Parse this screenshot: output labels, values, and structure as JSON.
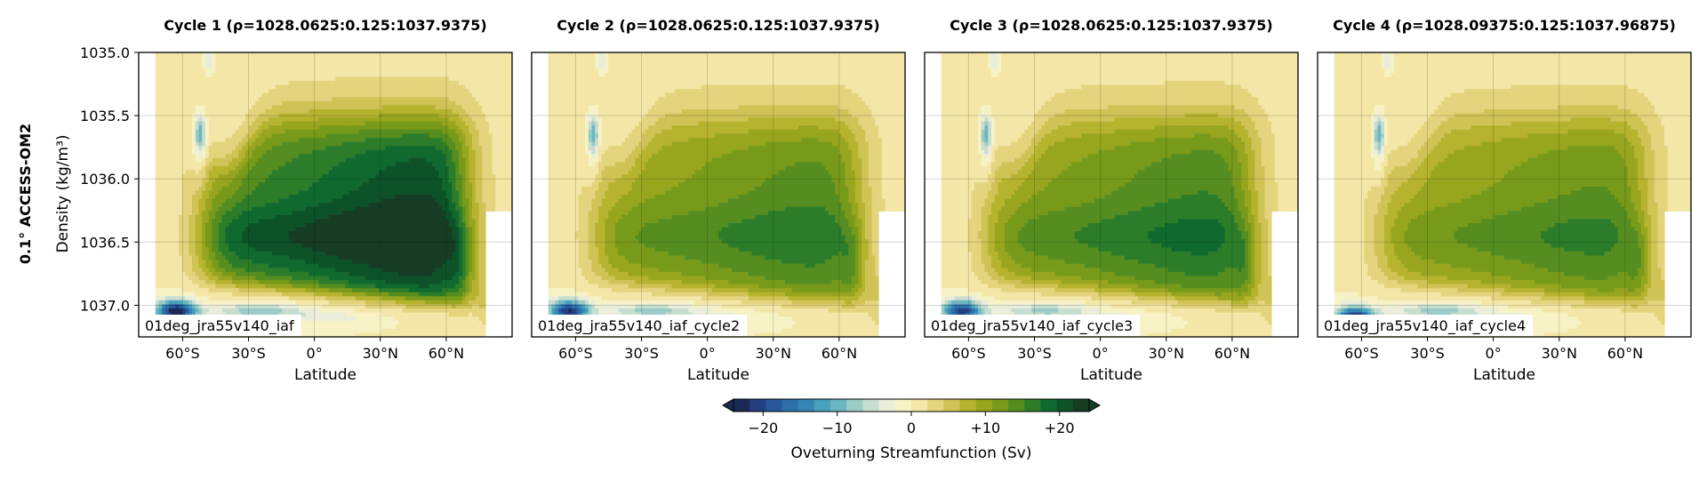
{
  "figure": {
    "row_label": "0.1° ACCESS-OM2",
    "ylabel": "Density (kg/m³)",
    "colorbar": {
      "label": "Oveturning Streamfunction (Sv)",
      "ticks": [
        "−20",
        "−10",
        "0",
        "+10",
        "+20"
      ],
      "tick_values": [
        -20,
        -10,
        0,
        10,
        20
      ],
      "range": [
        -24,
        24
      ],
      "extend": "both",
      "colors": [
        "#1b2a55",
        "#243f82",
        "#27589b",
        "#2c6fa9",
        "#3585b5",
        "#47a0bc",
        "#6cb6c0",
        "#9bcbc5",
        "#c7ddcf",
        "#e9edd9",
        "#f7f2c6",
        "#f3e6a6",
        "#e3d47d",
        "#cfc356",
        "#b6b32f",
        "#98a51f",
        "#789a1b",
        "#558d20",
        "#2c7d2a",
        "#106a30",
        "#0d5229",
        "#173c24"
      ]
    }
  },
  "chart_data": [
    {
      "type": "heatmap",
      "title": "Cycle 1 (ρ=1028.0625:0.125:1037.9375)",
      "run_label": "01deg_jra55v140_iaf",
      "xlabel": "Latitude",
      "ylabel": "Density (kg/m³)",
      "xlim": [
        -80,
        90
      ],
      "ylim": [
        1037.25,
        1035.0
      ],
      "xticks": [
        "60°S",
        "30°S",
        "0°",
        "30°N",
        "60°N"
      ],
      "xtick_values": [
        -60,
        -30,
        0,
        30,
        60
      ],
      "yticks": [
        "1035.0",
        "1035.5",
        "1036.0",
        "1036.5",
        "1037.0"
      ],
      "ytick_values": [
        1035.0,
        1035.5,
        1036.0,
        1036.5,
        1037.0
      ],
      "grid": true,
      "features": {
        "max_nadw": 22,
        "min_aabw": -24,
        "bottom_cell_max_density": 1037.05
      }
    },
    {
      "type": "heatmap",
      "title": "Cycle 2 (ρ=1028.0625:0.125:1037.9375)",
      "run_label": "01deg_jra55v140_iaf_cycle2",
      "xlabel": "Latitude",
      "ylabel": "",
      "xlim": [
        -80,
        90
      ],
      "ylim": [
        1037.25,
        1035.0
      ],
      "xticks": [
        "60°S",
        "30°S",
        "0°",
        "30°N",
        "60°N"
      ],
      "xtick_values": [
        -60,
        -30,
        0,
        30,
        60
      ],
      "yticks": [],
      "grid": true,
      "features": {
        "max_nadw": 14,
        "min_aabw": -22,
        "bottom_cell_max_density": 1037.05
      }
    },
    {
      "type": "heatmap",
      "title": "Cycle 3 (ρ=1028.0625:0.125:1037.9375)",
      "run_label": "01deg_jra55v140_iaf_cycle3",
      "xlabel": "Latitude",
      "ylabel": "",
      "xlim": [
        -80,
        90
      ],
      "ylim": [
        1037.25,
        1035.0
      ],
      "xticks": [
        "60°S",
        "30°S",
        "0°",
        "30°N",
        "60°N"
      ],
      "xtick_values": [
        -60,
        -30,
        0,
        30,
        60
      ],
      "yticks": [],
      "grid": true,
      "features": {
        "max_nadw": 15,
        "min_aabw": -21,
        "bottom_cell_max_density": 1037.05
      }
    },
    {
      "type": "heatmap",
      "title": "Cycle 4 (ρ=1028.09375:0.125:1037.96875)",
      "run_label": "01deg_jra55v140_iaf_cycle4",
      "xlabel": "Latitude",
      "ylabel": "",
      "xlim": [
        -80,
        90
      ],
      "ylim": [
        1037.25,
        1035.0
      ],
      "xticks": [
        "60°S",
        "30°S",
        "0°",
        "30°N",
        "60°N"
      ],
      "xtick_values": [
        -60,
        -30,
        0,
        30,
        60
      ],
      "yticks": [],
      "grid": true,
      "features": {
        "max_nadw": 13,
        "min_aabw": -22,
        "bottom_cell_max_density": 1037.1
      }
    }
  ]
}
